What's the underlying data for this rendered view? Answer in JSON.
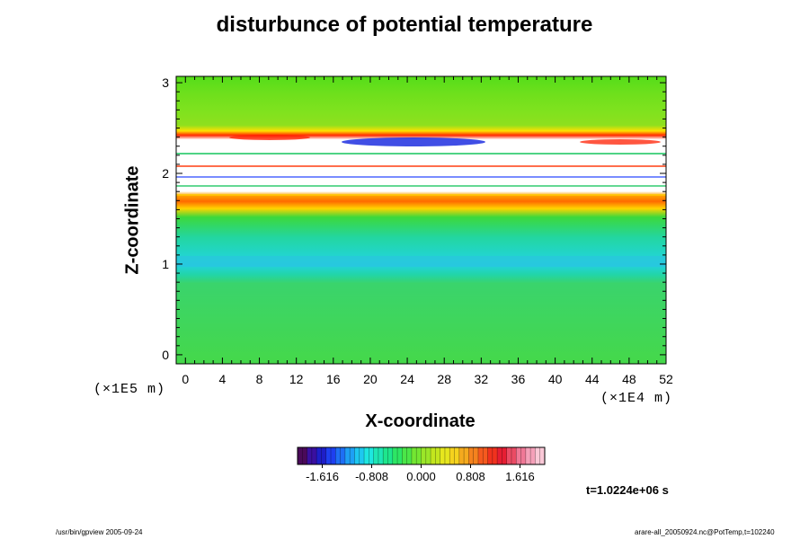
{
  "chart_data": {
    "type": "heatmap",
    "title": "disturbunce of potential temperature",
    "xlabel": "X-coordinate",
    "ylabel": "Z-coordinate",
    "x_unit": "(×1E4 m)",
    "y_unit": "(×1E5 m)",
    "x_ticks": [
      "0",
      "4",
      "8",
      "12",
      "16",
      "20",
      "24",
      "28",
      "32",
      "36",
      "40",
      "44",
      "48",
      "52"
    ],
    "y_ticks": [
      "0",
      "1",
      "2",
      "3"
    ],
    "xlim": [
      -1,
      52
    ],
    "ylim": [
      -0.1,
      3.07
    ],
    "colorbar": {
      "tick_labels": [
        "-1.616",
        "-0.808",
        "0.000",
        "0.808",
        "1.616"
      ],
      "range": [
        -2.02,
        2.02
      ]
    },
    "time_label": "t=1.0224e+06 s"
  },
  "footer": {
    "left": "/usr/bin/gpview 2005-09-24",
    "right": "arare-all_20050924.nc@PotTemp,t=102240"
  }
}
